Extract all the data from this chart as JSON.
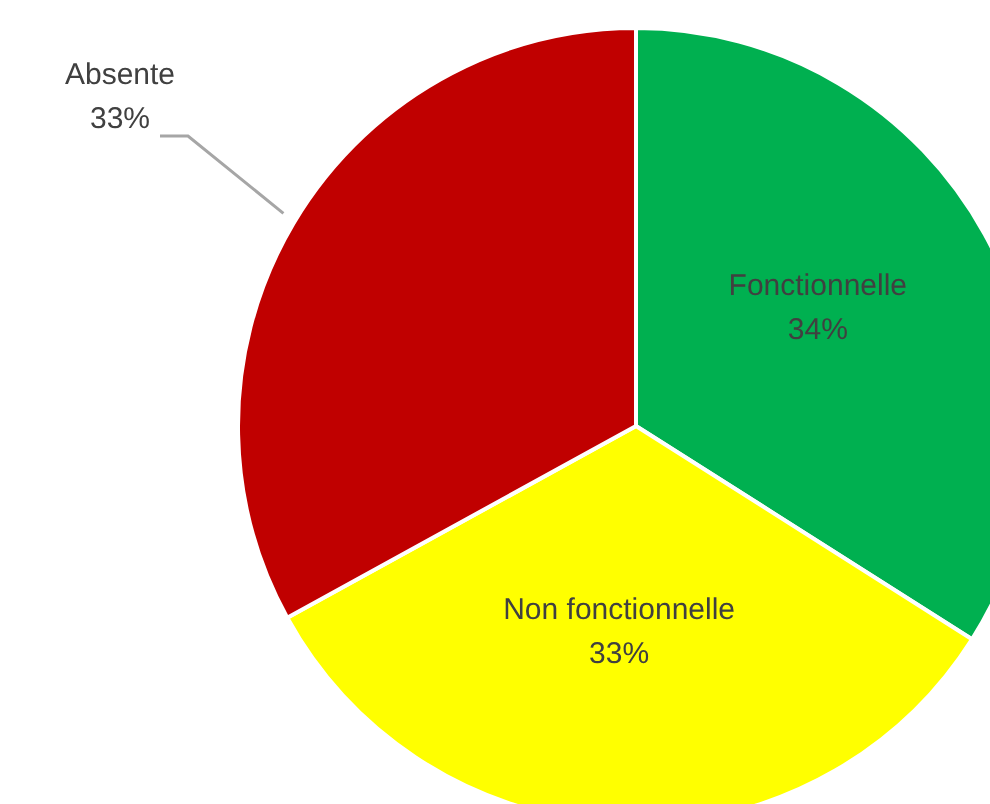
{
  "chart_data": {
    "type": "pie",
    "categories": [
      "Fonctionnelle",
      "Non fonctionnelle",
      "Absente"
    ],
    "values": [
      34,
      33,
      33
    ],
    "colors": [
      "#00b050",
      "#ffff00",
      "#c00000"
    ],
    "value_labels": [
      "34%",
      "33%",
      "33%"
    ]
  }
}
